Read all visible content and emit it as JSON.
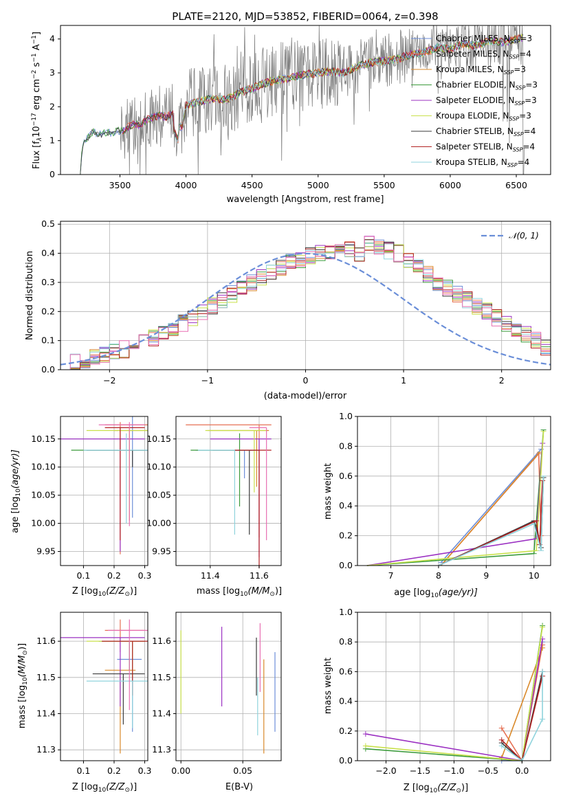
{
  "colors": {
    "chabrier_miles": "#6c8ed8",
    "salpeter_miles": "#e66f52",
    "kroupa_miles": "#d9892a",
    "chabrier_elodie": "#3a9a3a",
    "salpeter_elodie": "#9b30c2",
    "kroupa_elodie": "#c8e04a",
    "chabrier_stelib": "#3a3a3a",
    "salpeter_stelib": "#b22222",
    "kroupa_stelib": "#8fd3dc",
    "data_spectrum": "#808080",
    "gaussian": "#6a8ed8",
    "pink": "#e86fb2",
    "grid": "#b0b0b0"
  },
  "chart_data": [
    {
      "id": "spectrum",
      "type": "line",
      "title": "PLATE=2120, MJD=53852, FIBERID=0064, z=0.398",
      "xlabel": "wavelength [Angstrom, rest frame]",
      "ylabel": "Flux [f",
      "ylabel_sub": "λ",
      "ylabel_rest": "10",
      "ylabel_exp": "−17",
      "ylabel_units": " erg cm",
      "ylabel_units_exp1": "−2",
      "ylabel_units_s": " s",
      "ylabel_units_exp2": "−1",
      "ylabel_units_A": " A",
      "ylabel_units_exp3": "−1",
      "ylabel_end": "]",
      "xlim": [
        3050,
        6760
      ],
      "ylim": [
        0,
        4.4
      ],
      "xticks": [
        3500,
        4000,
        4500,
        5000,
        5500,
        6000,
        6500
      ],
      "yticks": [
        0,
        1,
        2,
        3,
        4
      ],
      "legend_position": "right",
      "legend": [
        {
          "label": "Chabrier MILES, N",
          "sub": "SSP",
          "value": "=3",
          "color_key": "chabrier_miles"
        },
        {
          "label": "Salpeter MILES, N",
          "sub": "SSP",
          "value": "=4",
          "color_key": "salpeter_miles"
        },
        {
          "label": "Kroupa MILES, N",
          "sub": "SSP",
          "value": "=3",
          "color_key": "kroupa_miles"
        },
        {
          "label": "Chabrier ELODIE, N",
          "sub": "SSP",
          "value": "=3",
          "color_key": "chabrier_elodie"
        },
        {
          "label": "Salpeter ELODIE, N",
          "sub": "SSP",
          "value": "=3",
          "color_key": "salpeter_elodie"
        },
        {
          "label": "Kroupa ELODIE, N",
          "sub": "SSP",
          "value": "=3",
          "color_key": "kroupa_elodie"
        },
        {
          "label": "Chabrier STELIB, N",
          "sub": "SSP",
          "value": "=4",
          "color_key": "chabrier_stelib"
        },
        {
          "label": "Salpeter STELIB, N",
          "sub": "SSP",
          "value": "=4",
          "color_key": "salpeter_stelib"
        },
        {
          "label": "Kroupa STELIB, N",
          "sub": "SSP",
          "value": "=4",
          "color_key": "kroupa_stelib"
        }
      ],
      "model_continuum": [
        [
          3200,
          0
        ],
        [
          3215,
          0.85
        ],
        [
          3240,
          1.0
        ],
        [
          3260,
          1.1
        ],
        [
          3300,
          1.25
        ],
        [
          3350,
          1.18
        ],
        [
          3400,
          1.25
        ],
        [
          3450,
          1.22
        ],
        [
          3500,
          1.3
        ],
        [
          3550,
          1.35
        ],
        [
          3600,
          1.5
        ],
        [
          3650,
          1.45
        ],
        [
          3700,
          1.6
        ],
        [
          3750,
          1.7
        ],
        [
          3800,
          1.75
        ],
        [
          3850,
          1.7
        ],
        [
          3900,
          1.8
        ],
        [
          3933,
          1.35
        ],
        [
          3968,
          1.4
        ],
        [
          4000,
          2.05
        ],
        [
          4100,
          2.15
        ],
        [
          4200,
          2.25
        ],
        [
          4300,
          2.2
        ],
        [
          4400,
          2.4
        ],
        [
          4500,
          2.55
        ],
        [
          4600,
          2.7
        ],
        [
          4700,
          2.8
        ],
        [
          4800,
          2.85
        ],
        [
          4900,
          2.95
        ],
        [
          5000,
          3.0
        ],
        [
          5100,
          3.05
        ],
        [
          5200,
          3.0
        ],
        [
          5300,
          3.2
        ],
        [
          5400,
          3.3
        ],
        [
          5500,
          3.35
        ],
        [
          5600,
          3.4
        ],
        [
          5700,
          3.55
        ],
        [
          5800,
          3.6
        ],
        [
          5900,
          3.75
        ],
        [
          6000,
          3.7
        ],
        [
          6100,
          3.85
        ],
        [
          6200,
          3.8
        ],
        [
          6300,
          3.95
        ],
        [
          6400,
          3.9
        ],
        [
          6500,
          4.0
        ],
        [
          6550,
          4.05
        ]
      ]
    },
    {
      "id": "residuals",
      "type": "bar",
      "xlabel": "(data-model)/error",
      "ylabel": "Normed distribution",
      "xlim": [
        -2.5,
        2.5
      ],
      "ylim": [
        0,
        0.51
      ],
      "xticks": [
        -2,
        -1,
        0,
        1,
        2
      ],
      "yticks": [
        0.0,
        0.1,
        0.2,
        0.3,
        0.4,
        0.5
      ],
      "legend": "𝒩(0, 1)",
      "gaussian": {
        "mu": 0,
        "sigma": 1
      },
      "bin_width": 0.1,
      "bin_start": -2.5,
      "base_histogram": [
        0.02,
        0.025,
        0.03,
        0.04,
        0.05,
        0.06,
        0.07,
        0.085,
        0.1,
        0.11,
        0.12,
        0.14,
        0.16,
        0.18,
        0.2,
        0.22,
        0.24,
        0.26,
        0.28,
        0.3,
        0.32,
        0.34,
        0.35,
        0.37,
        0.38,
        0.39,
        0.4,
        0.41,
        0.42,
        0.41,
        0.4,
        0.44,
        0.42,
        0.41,
        0.4,
        0.38,
        0.36,
        0.33,
        0.3,
        0.28,
        0.26,
        0.24,
        0.22,
        0.2,
        0.18,
        0.16,
        0.14,
        0.12,
        0.1,
        0.08,
        0.06
      ]
    },
    {
      "id": "age_vs_Z",
      "type": "scatter",
      "xlabel": "Z [log",
      "xlabel_sub": "10",
      "xlabel_rest": "(Z/Z",
      "xlabel_sub2": "⊙",
      "xlabel_end": ")]",
      "ylabel": "age  [log",
      "ylabel_sub": "10",
      "ylabel_rest": "(age/yr)]",
      "xlim": [
        0.025,
        0.31
      ],
      "ylim": [
        9.925,
        10.19
      ],
      "xticks": [
        "0.1",
        "0.2",
        "0.3"
      ],
      "yticks": [
        "9.95",
        "10.00",
        "10.05",
        "10.10",
        "10.15"
      ]
    },
    {
      "id": "age_vs_mass",
      "type": "scatter",
      "xlabel": "mass [log",
      "xlabel_sub": "10",
      "xlabel_rest": "(M/M",
      "xlabel_sub2": "⊙",
      "xlabel_end": ")]",
      "xlim": [
        11.26,
        11.69
      ],
      "ylim": [
        9.925,
        10.19
      ],
      "xticks": [
        "11.4",
        "11.6"
      ],
      "yticks": [
        "9.95",
        "10.00",
        "10.05",
        "10.10",
        "10.15"
      ]
    },
    {
      "id": "weight_vs_age",
      "type": "line",
      "xlabel": "age  [log",
      "xlabel_sub": "10",
      "xlabel_rest": "(age/yr)]",
      "ylabel": "mass weight",
      "xlim": [
        6.3,
        10.35
      ],
      "ylim": [
        0,
        1.0
      ],
      "xticks": [
        "7",
        "8",
        "9",
        "10"
      ],
      "yticks": [
        "0.0",
        "0.2",
        "0.4",
        "0.6",
        "0.8",
        "1.0"
      ]
    },
    {
      "id": "mass_vs_Z",
      "type": "scatter",
      "xlabel": "Z [log",
      "xlabel_sub": "10",
      "xlabel_rest": "(Z/Z",
      "xlabel_sub2": "⊙",
      "xlabel_end": ")]",
      "ylabel": "mass [log",
      "ylabel_sub": "10",
      "ylabel_rest": "(M/M",
      "ylabel_sub2": "⊙",
      "ylabel_end": ")]",
      "xlim": [
        0.025,
        0.31
      ],
      "ylim": [
        11.27,
        11.68
      ],
      "xticks": [
        "0.1",
        "0.2",
        "0.3"
      ],
      "yticks": [
        "11.3",
        "11.4",
        "11.5",
        "11.6"
      ]
    },
    {
      "id": "mass_vs_ebv",
      "type": "scatter",
      "xlabel": "E(B-V)",
      "xlim": [
        -0.004,
        0.081
      ],
      "ylim": [
        11.27,
        11.68
      ],
      "xticks": [
        "0.00",
        "0.05"
      ],
      "yticks": [
        "11.3",
        "11.4",
        "11.5",
        "11.6"
      ]
    },
    {
      "id": "weight_vs_Z",
      "type": "line",
      "xlabel": "Z [log",
      "xlabel_sub": "10",
      "xlabel_rest": "(Z/Z",
      "xlabel_sub2": "⊙",
      "xlabel_end": ")]",
      "ylabel": "mass weight",
      "xlim": [
        -2.42,
        0.42
      ],
      "ylim": [
        0,
        1.0
      ],
      "xticks": [
        "−2.0",
        "−1.5",
        "−1.0",
        "−0.5",
        "0.0"
      ],
      "yticks": [
        "0.0",
        "0.2",
        "0.4",
        "0.6",
        "0.8",
        "1.0"
      ]
    }
  ]
}
